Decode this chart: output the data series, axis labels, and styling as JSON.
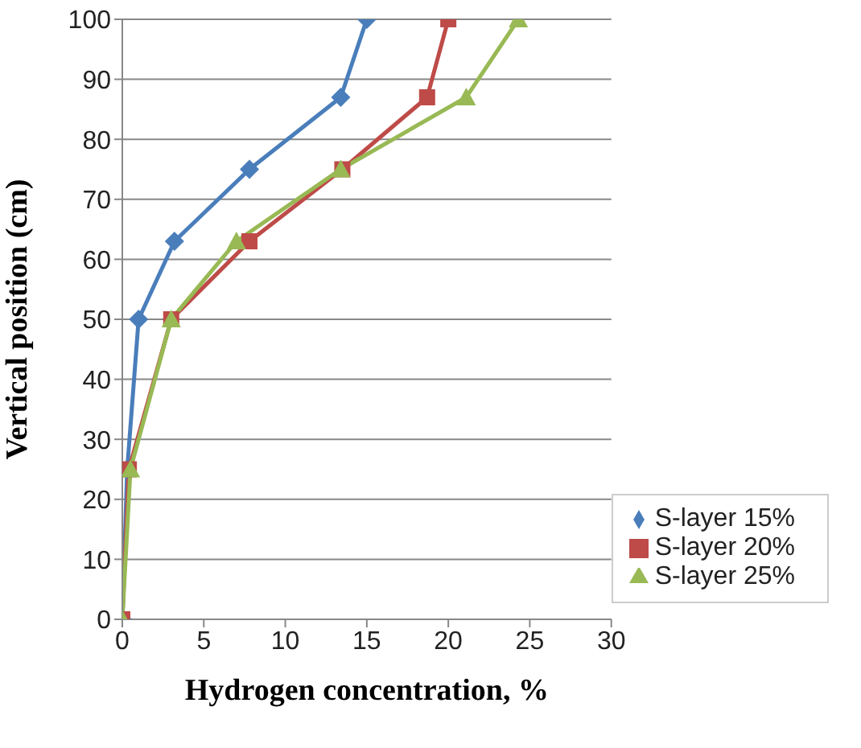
{
  "chart_data": {
    "type": "line",
    "xlabel": "Hydrogen concentration, %",
    "ylabel": "Vertical position (cm)",
    "series": [
      {
        "name": "S-layer 15%",
        "color": "#4a7ebb",
        "marker": "diamond",
        "x": [
          0,
          0.3,
          1,
          3.2,
          7.8,
          13.4,
          15
        ],
        "values": [
          0,
          25,
          50,
          63,
          75,
          87,
          100
        ]
      },
      {
        "name": "S-layer 20%",
        "color": "#be4b48",
        "marker": "square",
        "x": [
          0,
          0.4,
          3,
          7.8,
          13.5,
          18.7,
          20
        ],
        "values": [
          0,
          25,
          50,
          63,
          75,
          87,
          100
        ]
      },
      {
        "name": "S-layer 25%",
        "color": "#98b954",
        "marker": "triangle",
        "x": [
          0,
          0.5,
          3,
          7,
          13.4,
          21.1,
          24.3
        ],
        "values": [
          0,
          25,
          50,
          63,
          75,
          87,
          100
        ]
      }
    ],
    "xlim": [
      0,
      30
    ],
    "xticks": [
      0,
      5,
      10,
      15,
      20,
      25,
      30
    ],
    "ylim": [
      0,
      100
    ],
    "yticks": [
      0,
      10,
      20,
      30,
      40,
      50,
      60,
      70,
      80,
      90,
      100
    ],
    "grid": "y",
    "legend": "bottom right"
  }
}
